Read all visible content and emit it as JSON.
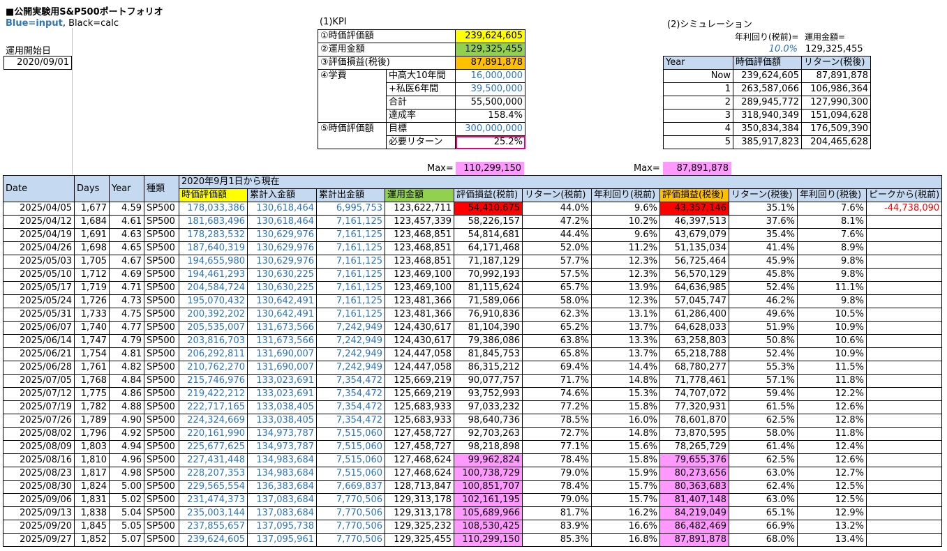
{
  "sheet": {
    "title": "■公開実験用S&P500ポートフォリオ",
    "legend_blue": "Blue=input",
    "legend_black": ", Black=calc",
    "start_label": "運用開始日",
    "start_date": "2020/09/01"
  },
  "kpi": {
    "title": "(1)KPI",
    "rows": [
      {
        "label": "①時価評価額",
        "sub": "",
        "value": "239,624,605",
        "color": "yellow"
      },
      {
        "label": "②運用金額",
        "sub": "",
        "value": "129,325,455",
        "color": "green"
      },
      {
        "label": "③評価損益(税後)",
        "sub": "",
        "value": "87,891,878",
        "color": "orange"
      }
    ],
    "edu_label": "④学費",
    "edu_rows": [
      {
        "sub": "中高大10年間",
        "value": "16,000,000",
        "blue": true
      },
      {
        "sub": "+私医6年間",
        "value": "39,500,000",
        "blue": true
      },
      {
        "sub": "合計",
        "value": "55,500,000",
        "blue": false
      },
      {
        "sub": "達成率",
        "value": "158.4%",
        "blue": false
      }
    ],
    "eval_label": "⑤時価評価額",
    "eval_rows": [
      {
        "sub": "目標",
        "value": "300,000,000",
        "blue": true
      },
      {
        "sub": "必要リターン",
        "value": "25.2%",
        "blue": false
      }
    ]
  },
  "sim": {
    "title": "(2)シミュレーション",
    "rate_label": "年利回り(税前)=",
    "amount_label": "運用金額=",
    "rate_value": "10.0%",
    "amount_value": "129,325,455",
    "headers": [
      "Year",
      "時価評価額",
      "リターン(税後)"
    ],
    "rows": [
      [
        "Now",
        "239,624,605",
        "87,891,878"
      ],
      [
        "1",
        "263,587,066",
        "106,986,364"
      ],
      [
        "2",
        "289,945,772",
        "127,990,300"
      ],
      [
        "3",
        "318,940,349",
        "151,094,628"
      ],
      [
        "4",
        "350,834,384",
        "176,509,390"
      ],
      [
        "5",
        "385,917,823",
        "204,465,628"
      ]
    ]
  },
  "max": {
    "label": "Max=",
    "pre_tax": "110,299,150",
    "post_tax": "87,891,878"
  },
  "table": {
    "span_header": "2020年9月1日から現在",
    "headers_left": [
      "Date",
      "Days",
      "Year",
      "種類"
    ],
    "headers_right": [
      "時価評価額",
      "累計入金額",
      "累計出金額",
      "運用金額",
      "評価損益(税前)",
      "リターン(税前)",
      "年利回り(税前)",
      "評価損益(税後)",
      "リターン(税後)",
      "年利回り(税後)",
      "ピークから(税前)"
    ],
    "rows": [
      [
        "2025/04/05",
        "1,677",
        "4.59",
        "SP500",
        "178,033,386",
        "130,618,464",
        "6,995,753",
        "123,622,711",
        "54,410,675",
        "44.0%",
        "9.6%",
        "43,357,146",
        "35.1%",
        "7.6%",
        "-44,738,090"
      ],
      [
        "2025/04/12",
        "1,684",
        "4.61",
        "SP500",
        "181,683,496",
        "130,618,464",
        "7,161,125",
        "123,457,339",
        "58,226,157",
        "47.2%",
        "10.2%",
        "46,397,513",
        "37.6%",
        "8.1%",
        ""
      ],
      [
        "2025/04/19",
        "1,691",
        "4.63",
        "SP500",
        "178,283,532",
        "130,629,976",
        "7,161,125",
        "123,468,851",
        "54,814,681",
        "44.4%",
        "9.6%",
        "43,679,079",
        "35.4%",
        "7.6%",
        ""
      ],
      [
        "2025/04/26",
        "1,698",
        "4.65",
        "SP500",
        "187,640,319",
        "130,629,976",
        "7,161,125",
        "123,468,851",
        "64,171,468",
        "52.0%",
        "11.2%",
        "51,135,034",
        "41.4%",
        "8.9%",
        ""
      ],
      [
        "2025/05/03",
        "1,705",
        "4.67",
        "SP500",
        "194,655,980",
        "130,629,976",
        "7,161,125",
        "123,468,851",
        "71,187,129",
        "57.7%",
        "12.3%",
        "56,725,464",
        "45.9%",
        "9.8%",
        ""
      ],
      [
        "2025/05/10",
        "1,712",
        "4.69",
        "SP500",
        "194,461,293",
        "130,630,225",
        "7,161,125",
        "123,469,100",
        "70,992,193",
        "57.5%",
        "12.3%",
        "56,570,129",
        "45.8%",
        "9.8%",
        ""
      ],
      [
        "2025/05/17",
        "1,719",
        "4.71",
        "SP500",
        "204,584,724",
        "130,630,225",
        "7,161,125",
        "123,469,100",
        "81,115,624",
        "65.7%",
        "13.9%",
        "64,636,985",
        "52.4%",
        "11.1%",
        ""
      ],
      [
        "2025/05/24",
        "1,726",
        "4.73",
        "SP500",
        "195,070,432",
        "130,642,491",
        "7,161,125",
        "123,481,366",
        "71,589,066",
        "58.0%",
        "12.3%",
        "57,045,747",
        "46.2%",
        "9.8%",
        ""
      ],
      [
        "2025/05/31",
        "1,733",
        "4.75",
        "SP500",
        "200,392,202",
        "130,642,491",
        "7,161,125",
        "123,481,366",
        "76,910,836",
        "62.3%",
        "13.1%",
        "61,286,400",
        "49.6%",
        "10.5%",
        ""
      ],
      [
        "2025/06/07",
        "1,740",
        "4.77",
        "SP500",
        "205,535,007",
        "131,673,566",
        "7,242,949",
        "124,430,617",
        "81,104,390",
        "65.2%",
        "13.7%",
        "64,628,033",
        "51.9%",
        "10.9%",
        ""
      ],
      [
        "2025/06/14",
        "1,747",
        "4.79",
        "SP500",
        "203,816,703",
        "131,673,566",
        "7,242,949",
        "124,430,617",
        "79,386,086",
        "63.8%",
        "13.3%",
        "63,258,803",
        "50.8%",
        "10.6%",
        ""
      ],
      [
        "2025/06/21",
        "1,754",
        "4.81",
        "SP500",
        "206,292,811",
        "131,690,007",
        "7,242,949",
        "124,447,058",
        "81,845,753",
        "65.8%",
        "13.7%",
        "65,218,788",
        "52.4%",
        "10.9%",
        ""
      ],
      [
        "2025/06/28",
        "1,761",
        "4.82",
        "SP500",
        "210,762,270",
        "131,690,007",
        "7,242,949",
        "124,447,058",
        "86,315,212",
        "69.4%",
        "14.4%",
        "68,780,277",
        "55.3%",
        "11.5%",
        ""
      ],
      [
        "2025/07/05",
        "1,768",
        "4.84",
        "SP500",
        "215,746,976",
        "133,023,691",
        "7,354,472",
        "125,669,219",
        "90,077,757",
        "71.7%",
        "14.8%",
        "71,778,461",
        "57.1%",
        "11.8%",
        ""
      ],
      [
        "2025/07/12",
        "1,775",
        "4.86",
        "SP500",
        "219,422,212",
        "133,023,691",
        "7,354,472",
        "125,669,219",
        "93,752,993",
        "74.6%",
        "15.3%",
        "74,707,072",
        "59.4%",
        "12.2%",
        ""
      ],
      [
        "2025/07/19",
        "1,782",
        "4.88",
        "SP500",
        "222,717,165",
        "133,038,405",
        "7,354,472",
        "125,683,933",
        "97,033,232",
        "77.2%",
        "15.8%",
        "77,320,931",
        "61.5%",
        "12.6%",
        ""
      ],
      [
        "2025/07/26",
        "1,789",
        "4.90",
        "SP500",
        "224,324,669",
        "133,038,405",
        "7,354,472",
        "125,683,933",
        "98,640,736",
        "78.5%",
        "16.0%",
        "78,601,870",
        "62.5%",
        "12.8%",
        ""
      ],
      [
        "2025/08/02",
        "1,796",
        "4.92",
        "SP500",
        "220,161,990",
        "134,973,787",
        "7,515,060",
        "127,458,727",
        "92,703,263",
        "72.7%",
        "14.8%",
        "73,870,595",
        "58.0%",
        "11.8%",
        ""
      ],
      [
        "2025/08/09",
        "1,803",
        "4.94",
        "SP500",
        "225,677,625",
        "134,973,787",
        "7,515,060",
        "127,458,727",
        "98,218,898",
        "77.1%",
        "15.6%",
        "78,265,729",
        "61.4%",
        "12.4%",
        ""
      ],
      [
        "2025/08/16",
        "1,810",
        "4.96",
        "SP500",
        "227,431,448",
        "134,983,684",
        "7,515,060",
        "127,468,624",
        "99,962,824",
        "78.4%",
        "15.8%",
        "79,655,376",
        "62.5%",
        "12.6%",
        ""
      ],
      [
        "2025/08/23",
        "1,817",
        "4.98",
        "SP500",
        "228,207,353",
        "134,983,684",
        "7,515,060",
        "127,468,624",
        "100,738,729",
        "79.0%",
        "15.9%",
        "80,273,656",
        "63.0%",
        "12.7%",
        ""
      ],
      [
        "2025/08/30",
        "1,824",
        "5.00",
        "SP500",
        "229,565,554",
        "136,383,684",
        "7,669,837",
        "128,713,847",
        "100,851,707",
        "78.4%",
        "15.7%",
        "80,363,683",
        "62.4%",
        "12.5%",
        ""
      ],
      [
        "2025/09/06",
        "1,831",
        "5.02",
        "SP500",
        "231,474,373",
        "137,083,684",
        "7,770,506",
        "129,313,178",
        "102,161,195",
        "79.0%",
        "15.7%",
        "81,407,148",
        "63.0%",
        "12.5%",
        ""
      ],
      [
        "2025/09/13",
        "1,838",
        "5.04",
        "SP500",
        "235,003,144",
        "137,083,684",
        "7,770,506",
        "129,313,178",
        "105,689,966",
        "81.7%",
        "16.2%",
        "84,219,049",
        "65.1%",
        "12.9%",
        ""
      ],
      [
        "2025/09/20",
        "1,845",
        "5.05",
        "SP500",
        "237,855,657",
        "137,095,738",
        "7,770,506",
        "129,325,232",
        "108,530,425",
        "83.9%",
        "16.6%",
        "86,482,469",
        "66.9%",
        "13.2%",
        ""
      ],
      [
        "2025/09/27",
        "1,852",
        "5.07",
        "SP500",
        "239,624,605",
        "137,095,961",
        "7,770,506",
        "129,325,455",
        "110,299,150",
        "85.3%",
        "16.8%",
        "87,891,878",
        "68.0%",
        "13.4%",
        ""
      ]
    ],
    "highlight": {
      "red_rows": [
        0
      ],
      "pink_rows": [
        19,
        20,
        21,
        22,
        23,
        24,
        25
      ]
    }
  },
  "colors": {
    "input_blue": "#2e75b6",
    "header_bg": "#c5d9f1",
    "yellow": "#ffff00",
    "green": "#92d050",
    "orange": "#ffc000",
    "pink": "#ff99ff",
    "red": "#ff0000"
  }
}
